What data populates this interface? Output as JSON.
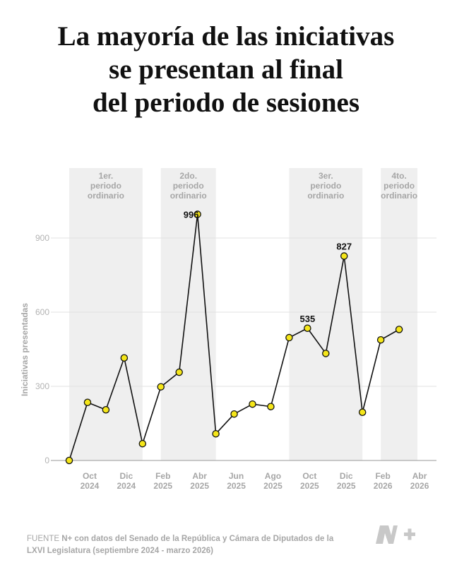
{
  "title_lines": [
    "La mayoría de las iniciativas",
    "se presentan al final",
    "del periodo de sesiones"
  ],
  "colors": {
    "point_fill": "#f5e61a",
    "line": "#111111",
    "band": "#efefef",
    "muted_text": "#a6a6a6"
  },
  "chart_data": {
    "type": "line",
    "title": "La mayoría de las iniciativas se presentan al final del periodo de sesiones",
    "xlabel": "",
    "ylabel": "Iniciativas presentadas",
    "ylim": [
      0,
      996
    ],
    "yticks": [
      0,
      300,
      600,
      900
    ],
    "grid": "horizontal",
    "x": [
      "2024-09",
      "2024-10",
      "2024-11",
      "2024-12",
      "2025-01",
      "2025-02",
      "2025-03",
      "2025-04",
      "2025-05",
      "2025-06",
      "2025-07",
      "2025-08",
      "2025-09",
      "2025-10",
      "2025-11",
      "2025-12",
      "2026-01",
      "2026-02",
      "2026-03"
    ],
    "values": [
      0,
      235,
      205,
      415,
      68,
      298,
      357,
      996,
      108,
      188,
      228,
      218,
      497,
      535,
      433,
      827,
      195,
      488,
      530
    ],
    "tick_labels": [
      {
        "month": "2024-10",
        "line1": "Oct",
        "line2": "2024"
      },
      {
        "month": "2024-12",
        "line1": "Dic",
        "line2": "2024"
      },
      {
        "month": "2025-02",
        "line1": "Feb",
        "line2": "2025"
      },
      {
        "month": "2025-04",
        "line1": "Abr",
        "line2": "2025"
      },
      {
        "month": "2025-06",
        "line1": "Jun",
        "line2": "2025"
      },
      {
        "month": "2025-08",
        "line1": "Ago",
        "line2": "2025"
      },
      {
        "month": "2025-10",
        "line1": "Oct",
        "line2": "2025"
      },
      {
        "month": "2025-12",
        "line1": "Dic",
        "line2": "2025"
      },
      {
        "month": "2026-02",
        "line1": "Feb",
        "line2": "2026"
      },
      {
        "month": "2026-04",
        "line1": "Abr",
        "line2": "2026"
      }
    ],
    "data_labels": [
      {
        "month": "2025-04",
        "text": "996"
      },
      {
        "month": "2025-10",
        "text": "535"
      },
      {
        "month": "2025-12",
        "text": "827"
      }
    ],
    "periods": [
      {
        "start": "2024-09",
        "end": "2024-12",
        "lines": [
          "1er.",
          "periodo",
          "ordinario"
        ]
      },
      {
        "start": "2025-02",
        "end": "2025-04",
        "lines": [
          "2do.",
          "periodo",
          "ordinario"
        ]
      },
      {
        "start": "2025-09",
        "end": "2025-12",
        "lines": [
          "3er.",
          "periodo",
          "ordinario"
        ]
      },
      {
        "start": "2026-02",
        "end": "2026-03",
        "lines": [
          "4to.",
          "periodo",
          "ordinario"
        ]
      }
    ]
  },
  "source": {
    "lead": "FUENTE",
    "text": "N+ con datos del Senado de la República y Cámara de Diputados de la LXVI Legislatura (septiembre 2024 - marzo 2026)"
  },
  "logo_icon": "n-plus-logo"
}
